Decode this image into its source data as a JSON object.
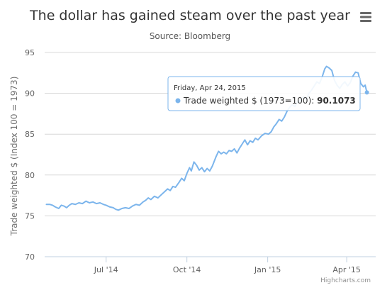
{
  "chart_data": {
    "type": "line",
    "title": "The dollar has gained steam over the past year",
    "subtitle": "Source: Bloomberg",
    "xlabel": "",
    "ylabel": "Trade weighted $ (Index 100 = 1973)",
    "ylim": [
      70,
      95
    ],
    "yticks": [
      70,
      75,
      80,
      85,
      90,
      95
    ],
    "xlim": [
      "2014-04-22",
      "2015-05-04"
    ],
    "xticks": [
      {
        "label": "Jul '14",
        "date": "2014-07-01"
      },
      {
        "label": "Oct '14",
        "date": "2014-10-01"
      },
      {
        "label": "Jan '15",
        "date": "2015-01-01"
      },
      {
        "label": "Apr '15",
        "date": "2015-04-01"
      }
    ],
    "grid": true,
    "legend": "none",
    "series": [
      {
        "name": "Trade weighted $ (1973=100)",
        "color": "#7cb5ec",
        "points": [
          [
            "2014-04-24",
            76.4
          ],
          [
            "2014-04-28",
            76.4
          ],
          [
            "2014-05-01",
            76.3
          ],
          [
            "2014-05-04",
            76.1
          ],
          [
            "2014-05-08",
            75.9
          ],
          [
            "2014-05-11",
            76.3
          ],
          [
            "2014-05-14",
            76.2
          ],
          [
            "2014-05-17",
            76.0
          ],
          [
            "2014-05-20",
            76.3
          ],
          [
            "2014-05-23",
            76.5
          ],
          [
            "2014-05-27",
            76.4
          ],
          [
            "2014-05-31",
            76.6
          ],
          [
            "2014-06-04",
            76.5
          ],
          [
            "2014-06-08",
            76.8
          ],
          [
            "2014-06-12",
            76.6
          ],
          [
            "2014-06-16",
            76.7
          ],
          [
            "2014-06-20",
            76.5
          ],
          [
            "2014-06-24",
            76.6
          ],
          [
            "2014-06-28",
            76.4
          ],
          [
            "2014-07-01",
            76.3
          ],
          [
            "2014-07-05",
            76.1
          ],
          [
            "2014-07-09",
            76.0
          ],
          [
            "2014-07-12",
            75.8
          ],
          [
            "2014-07-15",
            75.7
          ],
          [
            "2014-07-19",
            75.9
          ],
          [
            "2014-07-23",
            76.0
          ],
          [
            "2014-07-27",
            75.9
          ],
          [
            "2014-07-31",
            76.2
          ],
          [
            "2014-08-04",
            76.4
          ],
          [
            "2014-08-08",
            76.3
          ],
          [
            "2014-08-12",
            76.7
          ],
          [
            "2014-08-15",
            76.9
          ],
          [
            "2014-08-18",
            77.2
          ],
          [
            "2014-08-21",
            77.0
          ],
          [
            "2014-08-25",
            77.4
          ],
          [
            "2014-08-29",
            77.2
          ],
          [
            "2014-09-02",
            77.6
          ],
          [
            "2014-09-06",
            78.0
          ],
          [
            "2014-09-09",
            78.3
          ],
          [
            "2014-09-12",
            78.1
          ],
          [
            "2014-09-15",
            78.6
          ],
          [
            "2014-09-18",
            78.5
          ],
          [
            "2014-09-22",
            79.1
          ],
          [
            "2014-09-25",
            79.6
          ],
          [
            "2014-09-28",
            79.3
          ],
          [
            "2014-10-01",
            80.2
          ],
          [
            "2014-10-04",
            80.9
          ],
          [
            "2014-10-06",
            80.5
          ],
          [
            "2014-10-09",
            81.6
          ],
          [
            "2014-10-12",
            81.2
          ],
          [
            "2014-10-15",
            80.6
          ],
          [
            "2014-10-18",
            80.9
          ],
          [
            "2014-10-21",
            80.4
          ],
          [
            "2014-10-24",
            80.8
          ],
          [
            "2014-10-27",
            80.5
          ],
          [
            "2014-10-30",
            81.1
          ],
          [
            "2014-11-03",
            82.2
          ],
          [
            "2014-11-06",
            82.9
          ],
          [
            "2014-11-09",
            82.6
          ],
          [
            "2014-11-12",
            82.8
          ],
          [
            "2014-11-15",
            82.6
          ],
          [
            "2014-11-18",
            83.0
          ],
          [
            "2014-11-21",
            82.9
          ],
          [
            "2014-11-24",
            83.2
          ],
          [
            "2014-11-27",
            82.7
          ],
          [
            "2014-11-30",
            83.3
          ],
          [
            "2014-12-03",
            83.8
          ],
          [
            "2014-12-06",
            84.3
          ],
          [
            "2014-12-09",
            83.7
          ],
          [
            "2014-12-12",
            84.2
          ],
          [
            "2014-12-15",
            84.0
          ],
          [
            "2014-12-18",
            84.5
          ],
          [
            "2014-12-21",
            84.3
          ],
          [
            "2014-12-25",
            84.8
          ],
          [
            "2014-12-29",
            85.1
          ],
          [
            "2015-01-02",
            85.0
          ],
          [
            "2015-01-05",
            85.3
          ],
          [
            "2015-01-08",
            85.9
          ],
          [
            "2015-01-11",
            86.3
          ],
          [
            "2015-01-14",
            86.8
          ],
          [
            "2015-01-17",
            86.6
          ],
          [
            "2015-01-20",
            87.1
          ],
          [
            "2015-01-23",
            87.8
          ],
          [
            "2015-01-26",
            88.3
          ],
          [
            "2015-01-29",
            88.6
          ],
          [
            "2015-02-01",
            88.4
          ],
          [
            "2015-02-04",
            88.9
          ],
          [
            "2015-02-08",
            89.2
          ],
          [
            "2015-02-11",
            89.6
          ],
          [
            "2015-02-14",
            89.3
          ],
          [
            "2015-02-17",
            90.0
          ],
          [
            "2015-02-20",
            90.4
          ],
          [
            "2015-02-23",
            90.9
          ],
          [
            "2015-02-26",
            91.4
          ],
          [
            "2015-03-01",
            91.2
          ],
          [
            "2015-03-04",
            92.0
          ],
          [
            "2015-03-07",
            93.0
          ],
          [
            "2015-03-09",
            93.3
          ],
          [
            "2015-03-12",
            93.1
          ],
          [
            "2015-03-15",
            92.8
          ],
          [
            "2015-03-18",
            91.6
          ],
          [
            "2015-03-21",
            91.0
          ],
          [
            "2015-03-24",
            90.6
          ],
          [
            "2015-03-27",
            91.1
          ],
          [
            "2015-03-30",
            91.4
          ],
          [
            "2015-04-02",
            90.9
          ],
          [
            "2015-04-05",
            91.3
          ],
          [
            "2015-04-08",
            92.1
          ],
          [
            "2015-04-11",
            92.6
          ],
          [
            "2015-04-14",
            92.5
          ],
          [
            "2015-04-17",
            91.2
          ],
          [
            "2015-04-20",
            90.8
          ],
          [
            "2015-04-22",
            91.0
          ],
          [
            "2015-04-24",
            90.1073
          ]
        ]
      }
    ]
  },
  "tooltip": {
    "date_label": "Friday, Apr 24, 2015",
    "series_label": "Trade weighted $ (1973=100): ",
    "value_label": "90.1073"
  },
  "credits": "Highcharts.com",
  "colors": {
    "series": "#7cb5ec",
    "grid": "#d8d8d8",
    "tooltip_border": "#7cb5ec"
  }
}
